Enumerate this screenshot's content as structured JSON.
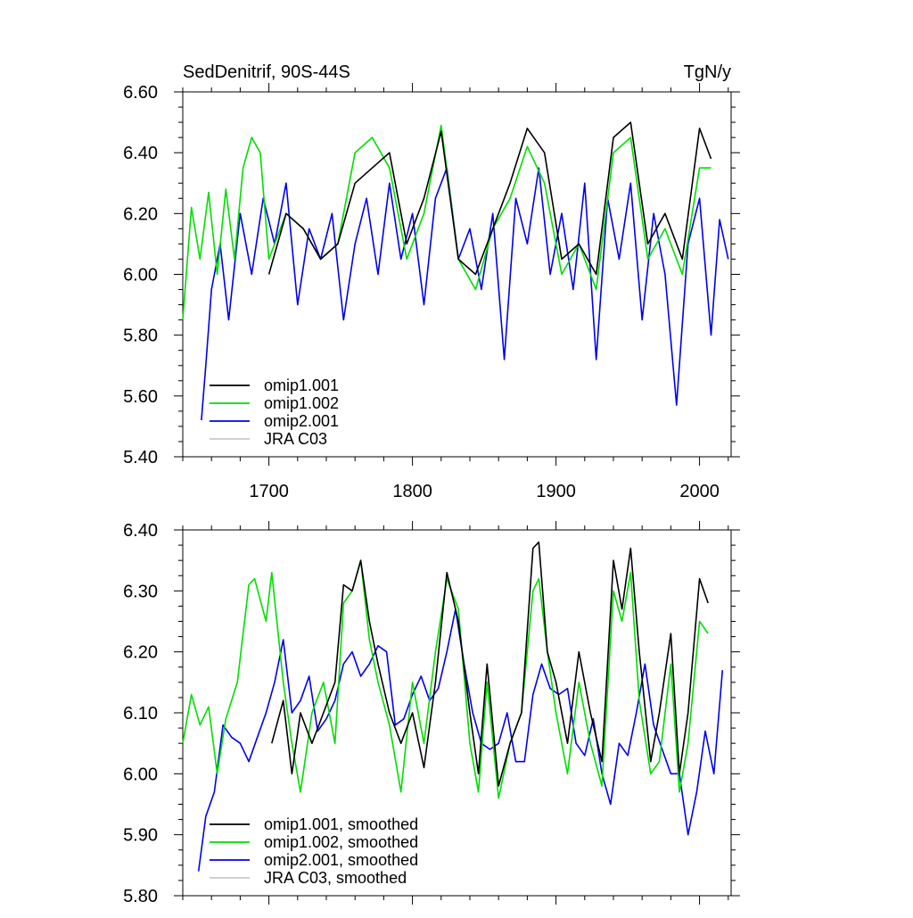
{
  "chart_data": [
    {
      "type": "line",
      "title": "SedDenitrif, 90S-44S",
      "units": "TgN/y",
      "xlim": [
        1640,
        2022
      ],
      "ylim": [
        5.4,
        6.6
      ],
      "yticks": [
        "5.40",
        "5.60",
        "5.80",
        "6.00",
        "6.20",
        "6.40",
        "6.60"
      ],
      "xticks": [
        "1700",
        "1800",
        "1900",
        "2000"
      ],
      "legend_position": "bottom-left",
      "series": [
        {
          "name": "omip1.001",
          "color": "#000000",
          "x": [
            1700,
            1712,
            1724,
            1736,
            1748,
            1760,
            1772,
            1784,
            1796,
            1808,
            1820,
            1832,
            1844,
            1856,
            1868,
            1880,
            1892,
            1904,
            1916,
            1928,
            1940,
            1952,
            1964,
            1976,
            1988,
            2000,
            2008
          ],
          "y": [
            6.0,
            6.2,
            6.15,
            6.05,
            6.1,
            6.3,
            6.35,
            6.4,
            6.1,
            6.25,
            6.47,
            6.05,
            6.0,
            6.15,
            6.3,
            6.48,
            6.4,
            6.05,
            6.1,
            6.0,
            6.45,
            6.5,
            6.1,
            6.2,
            6.05,
            6.48,
            6.38
          ]
        },
        {
          "name": "omip1.002",
          "color": "#00dd00",
          "x": [
            1640,
            1646,
            1652,
            1658,
            1664,
            1670,
            1676,
            1682,
            1688,
            1694,
            1700,
            1712,
            1724,
            1736,
            1748,
            1760,
            1772,
            1784,
            1796,
            1808,
            1820,
            1832,
            1844,
            1856,
            1868,
            1880,
            1892,
            1904,
            1916,
            1928,
            1940,
            1952,
            1964,
            1976,
            1988,
            2000,
            2008
          ],
          "y": [
            5.85,
            6.22,
            6.05,
            6.27,
            6.0,
            6.28,
            6.05,
            6.35,
            6.45,
            6.4,
            6.05,
            6.2,
            6.15,
            6.05,
            6.1,
            6.4,
            6.45,
            6.35,
            6.05,
            6.2,
            6.49,
            6.05,
            5.95,
            6.15,
            6.25,
            6.42,
            6.3,
            6.0,
            6.1,
            5.95,
            6.4,
            6.45,
            6.05,
            6.15,
            6.0,
            6.35,
            6.35
          ]
        },
        {
          "name": "omip2.001",
          "color": "#0000ee",
          "x": [
            1653,
            1656,
            1660,
            1666,
            1672,
            1680,
            1688,
            1696,
            1704,
            1712,
            1720,
            1728,
            1736,
            1744,
            1752,
            1760,
            1768,
            1776,
            1784,
            1792,
            1800,
            1808,
            1816,
            1824,
            1832,
            1840,
            1848,
            1856,
            1864,
            1872,
            1880,
            1888,
            1896,
            1904,
            1912,
            1920,
            1928,
            1936,
            1944,
            1952,
            1960,
            1968,
            1976,
            1984,
            1992,
            2000,
            2008,
            2014,
            2020
          ],
          "y": [
            5.52,
            5.7,
            5.95,
            6.1,
            5.85,
            6.2,
            6.0,
            6.25,
            6.1,
            6.3,
            5.9,
            6.15,
            6.05,
            6.2,
            5.85,
            6.1,
            6.25,
            6.0,
            6.3,
            6.05,
            6.2,
            5.9,
            6.25,
            6.35,
            6.05,
            6.15,
            5.95,
            6.2,
            5.72,
            6.25,
            6.1,
            6.35,
            6.0,
            6.2,
            5.95,
            6.3,
            5.72,
            6.25,
            6.05,
            6.3,
            5.85,
            6.2,
            6.0,
            5.57,
            6.1,
            6.25,
            5.8,
            6.18,
            6.05
          ]
        },
        {
          "name": "JRA C03",
          "color": "#c8c8c8",
          "x": [],
          "y": []
        }
      ]
    },
    {
      "type": "line",
      "title": "",
      "xlim": [
        1640,
        2022
      ],
      "ylim": [
        5.8,
        6.4
      ],
      "yticks": [
        "5.80",
        "5.90",
        "6.00",
        "6.10",
        "6.20",
        "6.30",
        "6.40"
      ],
      "legend_position": "bottom-left",
      "series": [
        {
          "name": "omip1.001, smoothed",
          "color": "#000000",
          "x": [
            1702,
            1710,
            1716,
            1722,
            1730,
            1738,
            1746,
            1752,
            1758,
            1764,
            1770,
            1776,
            1784,
            1792,
            1800,
            1808,
            1816,
            1824,
            1832,
            1840,
            1846,
            1852,
            1860,
            1868,
            1876,
            1884,
            1888,
            1894,
            1900,
            1908,
            1916,
            1924,
            1932,
            1940,
            1946,
            1952,
            1958,
            1966,
            1972,
            1980,
            1986,
            1992,
            2000,
            2006
          ],
          "y": [
            6.05,
            6.12,
            6.0,
            6.1,
            6.05,
            6.1,
            6.15,
            6.31,
            6.3,
            6.35,
            6.25,
            6.18,
            6.1,
            6.05,
            6.1,
            6.01,
            6.15,
            6.33,
            6.25,
            6.1,
            6.0,
            6.18,
            5.98,
            6.05,
            6.1,
            6.37,
            6.38,
            6.2,
            6.15,
            6.05,
            6.2,
            6.1,
            6.02,
            6.35,
            6.27,
            6.37,
            6.2,
            6.02,
            6.1,
            6.23,
            6.0,
            6.1,
            6.32,
            6.28
          ]
        },
        {
          "name": "omip1.002, smoothed",
          "color": "#00dd00",
          "x": [
            1640,
            1646,
            1652,
            1658,
            1664,
            1670,
            1678,
            1686,
            1690,
            1698,
            1702,
            1710,
            1716,
            1722,
            1730,
            1738,
            1746,
            1752,
            1758,
            1764,
            1770,
            1776,
            1784,
            1792,
            1800,
            1808,
            1816,
            1824,
            1832,
            1840,
            1846,
            1852,
            1860,
            1868,
            1876,
            1884,
            1888,
            1894,
            1900,
            1908,
            1916,
            1924,
            1932,
            1940,
            1946,
            1952,
            1958,
            1966,
            1972,
            1980,
            1986,
            1992,
            2000,
            2006
          ],
          "y": [
            6.05,
            6.13,
            6.08,
            6.11,
            6.0,
            6.09,
            6.15,
            6.31,
            6.32,
            6.25,
            6.33,
            6.15,
            6.05,
            5.97,
            6.1,
            6.15,
            6.05,
            6.28,
            6.3,
            6.35,
            6.22,
            6.15,
            6.08,
            5.97,
            6.15,
            6.05,
            6.2,
            6.32,
            6.27,
            6.05,
            5.97,
            6.15,
            5.96,
            6.05,
            6.1,
            6.3,
            6.32,
            6.2,
            6.1,
            6.0,
            6.15,
            6.05,
            5.98,
            6.3,
            6.25,
            6.33,
            6.12,
            6.0,
            6.02,
            6.18,
            5.97,
            6.05,
            6.25,
            6.23
          ]
        },
        {
          "name": "omip2.001, smoothed",
          "color": "#0000ee",
          "x": [
            1651,
            1656,
            1662,
            1668,
            1674,
            1680,
            1686,
            1692,
            1698,
            1704,
            1710,
            1716,
            1722,
            1728,
            1734,
            1740,
            1746,
            1752,
            1758,
            1764,
            1770,
            1776,
            1782,
            1788,
            1794,
            1800,
            1806,
            1812,
            1818,
            1824,
            1830,
            1836,
            1842,
            1848,
            1854,
            1860,
            1866,
            1872,
            1878,
            1884,
            1890,
            1896,
            1902,
            1908,
            1914,
            1920,
            1926,
            1932,
            1938,
            1944,
            1950,
            1956,
            1962,
            1968,
            1974,
            1980,
            1986,
            1992,
            1998,
            2004,
            2010,
            2016
          ],
          "y": [
            5.84,
            5.93,
            5.97,
            6.08,
            6.06,
            6.05,
            6.02,
            6.06,
            6.1,
            6.15,
            6.22,
            6.1,
            6.12,
            6.16,
            6.07,
            6.09,
            6.12,
            6.18,
            6.2,
            6.16,
            6.18,
            6.21,
            6.2,
            6.08,
            6.09,
            6.13,
            6.16,
            6.12,
            6.14,
            6.2,
            6.27,
            6.18,
            6.1,
            6.05,
            6.04,
            6.05,
            6.1,
            6.02,
            6.02,
            6.13,
            6.18,
            6.14,
            6.13,
            6.14,
            6.05,
            6.03,
            6.09,
            6.0,
            5.95,
            6.05,
            6.03,
            6.1,
            6.18,
            6.08,
            6.04,
            6.0,
            6.0,
            5.9,
            5.97,
            6.07,
            6.0,
            6.17
          ]
        },
        {
          "name": "JRA C03, smoothed",
          "color": "#c8c8c8",
          "x": [],
          "y": []
        }
      ]
    }
  ]
}
